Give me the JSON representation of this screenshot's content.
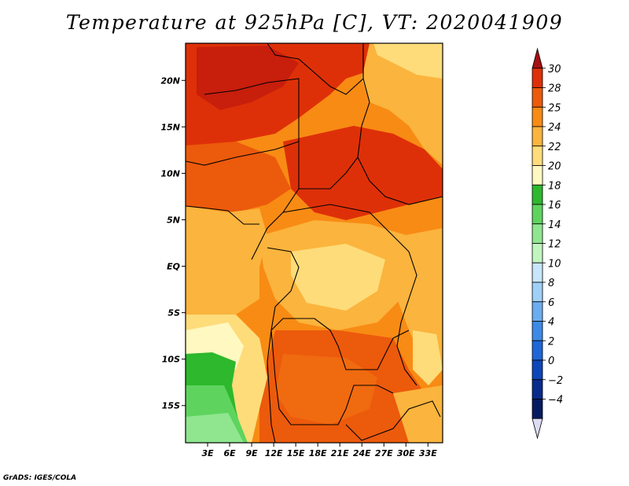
{
  "title": "Temperature at 925hPa [C], VT: 2020041909",
  "footer": "GrADS: IGES/COLA",
  "map": {
    "projection": "lat-lon",
    "lon_range": [
      0,
      35
    ],
    "lat_range": [
      -19,
      24
    ],
    "lat_labels": [
      {
        "value": 20,
        "text": "20N"
      },
      {
        "value": 15,
        "text": "15N"
      },
      {
        "value": 10,
        "text": "10N"
      },
      {
        "value": 5,
        "text": "5N"
      },
      {
        "value": 0,
        "text": "EQ"
      },
      {
        "value": -5,
        "text": "5S"
      },
      {
        "value": -10,
        "text": "10S"
      },
      {
        "value": -15,
        "text": "15S"
      }
    ],
    "lon_labels": [
      {
        "value": 3,
        "text": "3E"
      },
      {
        "value": 6,
        "text": "6E"
      },
      {
        "value": 9,
        "text": "9E"
      },
      {
        "value": 12,
        "text": "12E"
      },
      {
        "value": 15,
        "text": "15E"
      },
      {
        "value": 18,
        "text": "18E"
      },
      {
        "value": 21,
        "text": "21E"
      },
      {
        "value": 24,
        "text": "24E"
      },
      {
        "value": 27,
        "text": "27E"
      },
      {
        "value": 30,
        "text": "30E"
      },
      {
        "value": 33,
        "text": "33E"
      }
    ]
  },
  "colorbar": {
    "levels": [
      "30",
      "28",
      "25",
      "24",
      "22",
      "20",
      "18",
      "16",
      "14",
      "12",
      "10",
      "8",
      "6",
      "4",
      "2",
      "0",
      "−2",
      "−4"
    ],
    "colors": [
      "#a50f15",
      "#de3008",
      "#ec5a0c",
      "#f88b14",
      "#fbb43d",
      "#fedc7a",
      "#fff8c0",
      "#2db82d",
      "#5ed45e",
      "#8fe68f",
      "#c0f5c0",
      "#c7e6fb",
      "#9fd0f7",
      "#6aaeef",
      "#3d8ae6",
      "#1e66d8",
      "#0d46b8",
      "#082a8c",
      "#061a60",
      "#dcdcf4"
    ]
  },
  "regions": [
    {
      "name": "sahara-north",
      "color": "#de3008"
    },
    {
      "name": "sahel-band",
      "color": "#ec5a0c"
    },
    {
      "name": "guinea-coast",
      "color": "#fbb43d"
    },
    {
      "name": "congo-basin",
      "color": "#fbb43d"
    },
    {
      "name": "east-highlands",
      "color": "#fedc7a"
    },
    {
      "name": "south-central",
      "color": "#ec5a0c"
    },
    {
      "name": "angola-coast-cool",
      "color": "#fff8c0"
    },
    {
      "name": "namibia-green",
      "color": "#2db82d"
    },
    {
      "name": "namibia-light-green",
      "color": "#8fe68f"
    }
  ]
}
